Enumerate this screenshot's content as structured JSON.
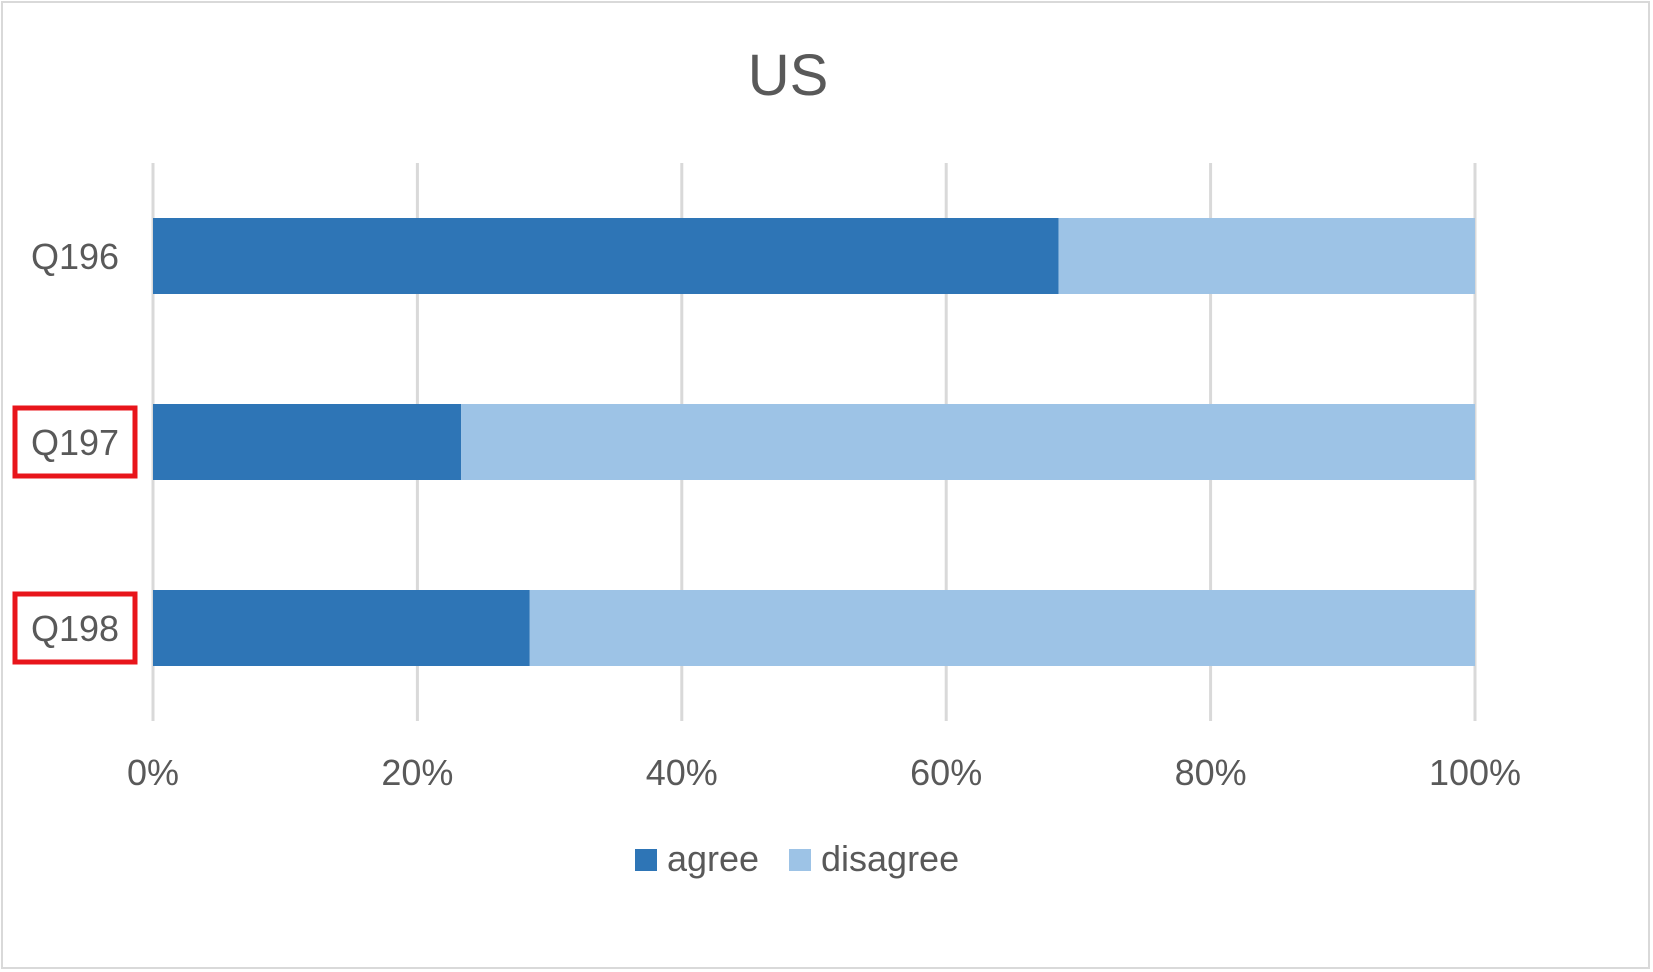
{
  "chart_data": {
    "type": "bar",
    "orientation": "horizontal",
    "stacking": "percent",
    "title": "US",
    "categories": [
      "Q196",
      "Q197",
      "Q198"
    ],
    "series": [
      {
        "name": "agree",
        "values": [
          68.5,
          23.3,
          28.5
        ],
        "color": "#2e75b6"
      },
      {
        "name": "disagree",
        "values": [
          31.5,
          76.7,
          71.5
        ],
        "color": "#9dc3e6"
      }
    ],
    "xlim": [
      0,
      100
    ],
    "x_ticks": [
      "0%",
      "20%",
      "40%",
      "60%",
      "80%",
      "100%"
    ],
    "grid": true,
    "legend_position": "bottom",
    "highlighted_categories": [
      "Q197",
      "Q198"
    ],
    "highlight_color": "#e8151b"
  }
}
